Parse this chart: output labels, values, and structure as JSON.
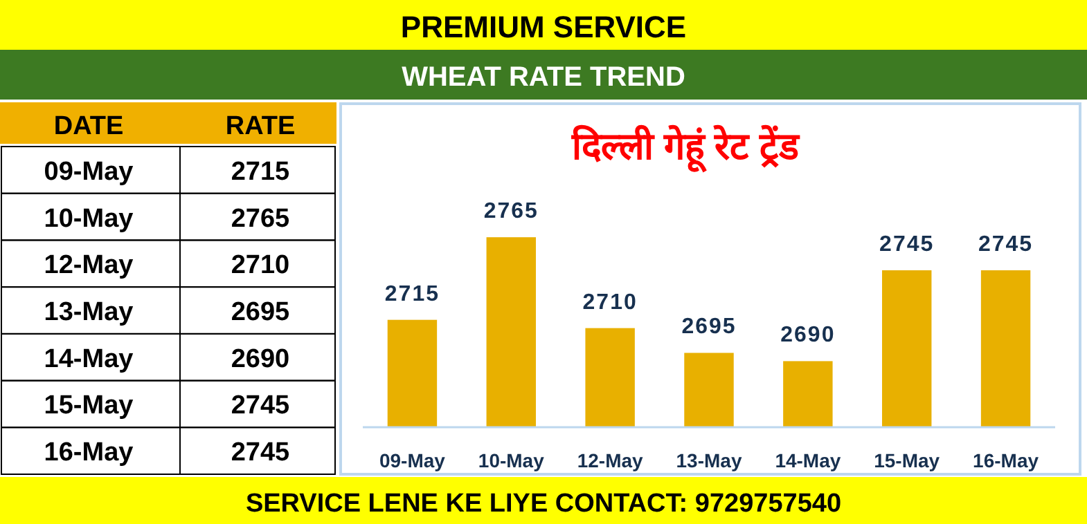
{
  "chart_data": [
    {
      "type": "other",
      "title": "PREMIUM SERVICE",
      "subtitle": "WHEAT RATE TREND",
      "categories": [
        "09-May",
        "10-May",
        "12-May",
        "13-May",
        "14-May",
        "15-May",
        "16-May"
      ],
      "values": [
        2715,
        2765,
        2710,
        2695,
        2690,
        2745,
        2745
      ],
      "data_labels": true,
      "annotations": [
        "DATE",
        "RATE",
        "SERVICE LENE KE LIYE CONTACT: 9729757540"
      ]
    },
    {
      "type": "bar",
      "title": "दिल्ली गेहूं रेट ट्रेंड",
      "categories": [
        "09-May",
        "10-May",
        "12-May",
        "13-May",
        "14-May",
        "15-May",
        "16-May"
      ],
      "values": [
        2715,
        2765,
        2710,
        2695,
        2690,
        2745,
        2745
      ],
      "color": "#e8b000",
      "ylim": [
        2650,
        2845
      ],
      "tick_labels": "x",
      "data_labels": true
    }
  ]
}
